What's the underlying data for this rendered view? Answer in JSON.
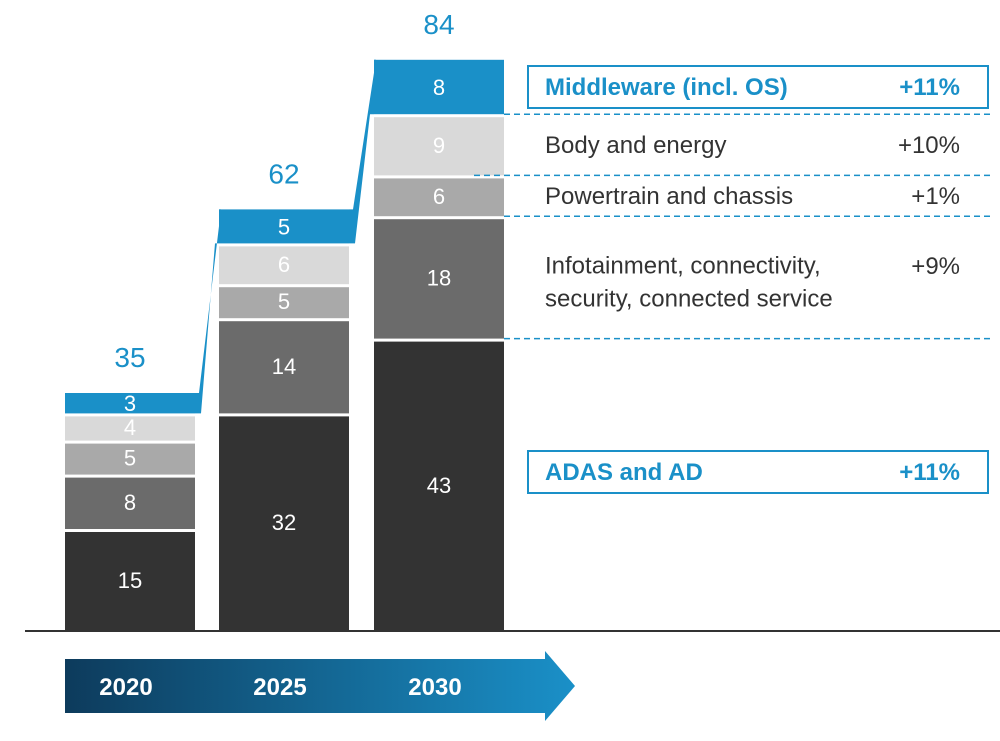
{
  "chart_data": {
    "type": "bar",
    "stacked": true,
    "categories": [
      "2020",
      "2025",
      "2030"
    ],
    "totals": [
      35,
      62,
      84
    ],
    "series": [
      {
        "name": "ADAS and AD",
        "growth": "+11%",
        "values": [
          15,
          32,
          43
        ],
        "color": "#333333"
      },
      {
        "name": "Infotainment, connectivity, security, connected service",
        "name_lines": [
          "Infotainment, connectivity,",
          "security, connected service"
        ],
        "growth": "+9%",
        "values": [
          8,
          14,
          18
        ],
        "color": "#6b6b6b"
      },
      {
        "name": "Powertrain and chassis",
        "growth": "+1%",
        "values": [
          5,
          5,
          6
        ],
        "color": "#a9a9a9"
      },
      {
        "name": "Body and energy",
        "growth": "+10%",
        "values": [
          4,
          6,
          9
        ],
        "color": "#d9d9d9"
      },
      {
        "name": "Middleware (incl. OS)",
        "growth": "+11%",
        "values": [
          3,
          5,
          8
        ],
        "color": "#1a90c8"
      }
    ],
    "highlighted_series": [
      "Middleware (incl. OS)",
      "ADAS and AD"
    ],
    "legend_placement": "right",
    "axis_color": "#333333",
    "timeline_arrow_colors": [
      "#0d3b5c",
      "#1a90c8"
    ]
  }
}
